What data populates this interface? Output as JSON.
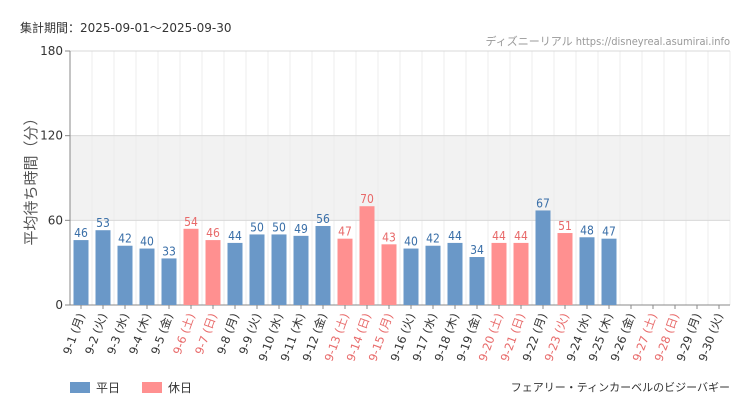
{
  "header": {
    "period": "集計期間：2025-09-01～2025-09-30",
    "credit": "ディズニーリアル https://disneyreal.asumirai.info"
  },
  "legend": {
    "weekday": "平日",
    "holiday": "休日"
  },
  "footer": {
    "attraction": "フェアリー・ティンカーベルのビジーバギー"
  },
  "colors": {
    "weekday": "#6a98c8",
    "holiday": "#ff9090",
    "weekday_label": "#3a6fa8",
    "holiday_label": "#e86a6a"
  },
  "chart_data": {
    "type": "bar",
    "ylabel": "平均待ち時間（分）",
    "ylim": [
      0,
      180
    ],
    "yticks": [
      0,
      60,
      120,
      180
    ],
    "categories": [
      "9-1 (月)",
      "9-2 (火)",
      "9-3 (水)",
      "9-4 (木)",
      "9-5 (金)",
      "9-6 (土)",
      "9-7 (日)",
      "9-8 (月)",
      "9-9 (火)",
      "9-10 (水)",
      "9-11 (木)",
      "9-12 (金)",
      "9-13 (土)",
      "9-14 (日)",
      "9-15 (月)",
      "9-16 (火)",
      "9-17 (水)",
      "9-18 (木)",
      "9-19 (金)",
      "9-20 (土)",
      "9-21 (日)",
      "9-22 (月)",
      "9-23 (火)",
      "9-24 (水)",
      "9-25 (木)",
      "9-26 (金)",
      "9-27 (土)",
      "9-28 (日)",
      "9-29 (月)",
      "9-30 (火)"
    ],
    "values": [
      46,
      53,
      42,
      40,
      33,
      54,
      46,
      44,
      50,
      50,
      49,
      56,
      47,
      70,
      43,
      40,
      42,
      44,
      34,
      44,
      44,
      67,
      51,
      48,
      47,
      null,
      null,
      null,
      null,
      null
    ],
    "holiday": [
      false,
      false,
      false,
      false,
      false,
      true,
      true,
      false,
      false,
      false,
      false,
      false,
      true,
      true,
      true,
      false,
      false,
      false,
      false,
      true,
      true,
      false,
      true,
      false,
      false,
      false,
      true,
      true,
      false,
      false
    ]
  }
}
